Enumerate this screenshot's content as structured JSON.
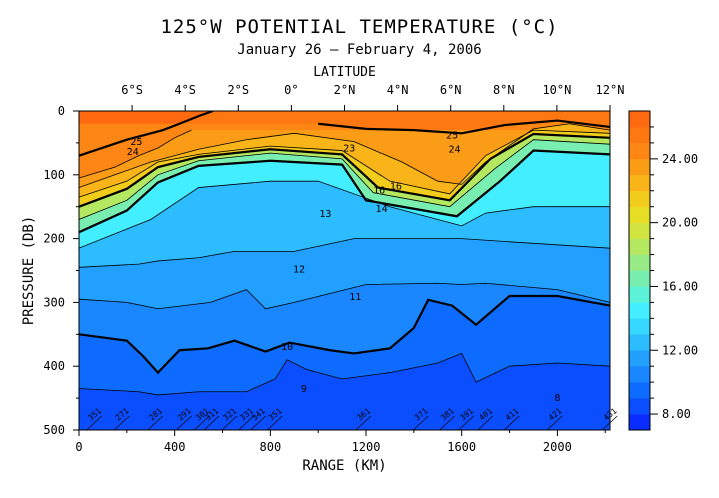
{
  "title": "125°W POTENTIAL TEMPERATURE (°C)",
  "subtitle": "January 26 – February 4, 2006",
  "chart_data": {
    "type": "heatmap",
    "title": "125°W POTENTIAL TEMPERATURE (°C)",
    "subtitle": "January 26 – February 4, 2006",
    "xlabel": "RANGE (KM)",
    "ylabel": "PRESSURE (DB)",
    "top_axis_label": "LATITUDE",
    "xlim": [
      0,
      2220
    ],
    "ylim": [
      500,
      0
    ],
    "x_ticks": [
      "0",
      "400",
      "800",
      "1200",
      "1600",
      "2000"
    ],
    "x_tick_values": [
      0,
      400,
      800,
      1200,
      1600,
      2000
    ],
    "y_ticks": [
      "0",
      "100",
      "200",
      "300",
      "400",
      "500"
    ],
    "y_tick_values": [
      0,
      100,
      200,
      300,
      400,
      500
    ],
    "lat_ticks": [
      "6°S",
      "4°S",
      "2°S",
      "0°",
      "2°N",
      "4°N",
      "6°N",
      "8°N",
      "10°N",
      "12°N"
    ],
    "lat_tick_range_km": [
      222,
      444,
      666,
      888,
      1110,
      1332,
      1554,
      1776,
      1998,
      2220
    ],
    "colorbar": {
      "ticks": [
        "8.00",
        "12.00",
        "16.00",
        "20.00",
        "24.00"
      ],
      "tick_values": [
        8,
        12,
        16,
        20,
        24
      ],
      "min": 7,
      "max": 27,
      "colors": [
        "#0a2cff",
        "#0a4eff",
        "#0d6cff",
        "#1a86ff",
        "#22a0ff",
        "#2cbcff",
        "#36d8ff",
        "#42eeff",
        "#5cf2d8",
        "#78efb0",
        "#96eb86",
        "#b4e860",
        "#d2e440",
        "#e6de24",
        "#f2cc1a",
        "#f8b418",
        "#fb9c16",
        "#fd8614",
        "#fe7812",
        "#ff6a10"
      ]
    },
    "contour_labels": [
      {
        "text": "25",
        "x": 240,
        "p": 47
      },
      {
        "text": "24",
        "x": 225,
        "p": 63
      },
      {
        "text": "23",
        "x": 1130,
        "p": 57
      },
      {
        "text": "25",
        "x": 1560,
        "p": 37
      },
      {
        "text": "24",
        "x": 1570,
        "p": 59
      },
      {
        "text": "16",
        "x": 1255,
        "p": 123
      },
      {
        "text": "16",
        "x": 1325,
        "p": 117
      },
      {
        "text": "14",
        "x": 1265,
        "p": 152
      },
      {
        "text": "13",
        "x": 1030,
        "p": 160
      },
      {
        "text": "12",
        "x": 920,
        "p": 247
      },
      {
        "text": "11",
        "x": 1155,
        "p": 290
      },
      {
        "text": "10",
        "x": 870,
        "p": 368
      },
      {
        "text": "9",
        "x": 940,
        "p": 434
      },
      {
        "text": "8",
        "x": 2000,
        "p": 448
      }
    ],
    "stations": [
      "351",
      "271",
      "281",
      "291",
      "301",
      "311",
      "321",
      "331",
      "341",
      "351",
      "361",
      "371",
      "381",
      "391",
      "401",
      "411",
      "421",
      "431"
    ],
    "stations_range_km": [
      45,
      160,
      300,
      420,
      495,
      535,
      610,
      680,
      730,
      800,
      1170,
      1410,
      1520,
      1600,
      1680,
      1790,
      1970,
      2200
    ],
    "isotherms": [
      {
        "t": 25,
        "points": [
          [
            0,
            70
          ],
          [
            200,
            45
          ],
          [
            350,
            30
          ],
          [
            420,
            20
          ],
          [
            500,
            8
          ],
          [
            560,
            0
          ]
        ]
      },
      {
        "t": 24,
        "points": [
          [
            0,
            105
          ],
          [
            150,
            88
          ],
          [
            250,
            70
          ],
          [
            330,
            58
          ],
          [
            400,
            42
          ],
          [
            470,
            30
          ]
        ]
      },
      {
        "t": 25,
        "points": [
          [
            1000,
            20
          ],
          [
            1200,
            28
          ],
          [
            1400,
            30
          ],
          [
            1600,
            35
          ],
          [
            1780,
            22
          ],
          [
            2000,
            15
          ],
          [
            2220,
            25
          ]
        ]
      },
      {
        "t": 23,
        "points": [
          [
            0,
            120
          ],
          [
            150,
            100
          ],
          [
            300,
            80
          ],
          [
            500,
            60
          ],
          [
            700,
            45
          ],
          [
            900,
            35
          ],
          [
            1150,
            48
          ],
          [
            1350,
            80
          ],
          [
            1500,
            110
          ],
          [
            1600,
            115
          ],
          [
            1700,
            80
          ],
          [
            1900,
            28
          ],
          [
            2050,
            20
          ],
          [
            2220,
            30
          ]
        ]
      },
      {
        "t": 22,
        "points": [
          [
            0,
            135
          ],
          [
            200,
            110
          ],
          [
            330,
            80
          ],
          [
            500,
            68
          ],
          [
            800,
            55
          ],
          [
            1100,
            62
          ],
          [
            1300,
            110
          ],
          [
            1550,
            130
          ],
          [
            1700,
            70
          ],
          [
            1900,
            30
          ],
          [
            2220,
            35
          ]
        ]
      },
      {
        "t": 20,
        "points": [
          [
            0,
            150
          ],
          [
            200,
            122
          ],
          [
            330,
            88
          ],
          [
            500,
            72
          ],
          [
            800,
            60
          ],
          [
            1100,
            68
          ],
          [
            1250,
            120
          ],
          [
            1550,
            140
          ],
          [
            1720,
            75
          ],
          [
            1900,
            36
          ],
          [
            2220,
            42
          ]
        ]
      },
      {
        "t": 17,
        "points": [
          [
            0,
            170
          ],
          [
            200,
            140
          ],
          [
            330,
            100
          ],
          [
            500,
            78
          ],
          [
            800,
            66
          ],
          [
            1100,
            75
          ],
          [
            1230,
            128
          ],
          [
            1550,
            150
          ],
          [
            1740,
            90
          ],
          [
            1900,
            45
          ],
          [
            2220,
            52
          ]
        ]
      },
      {
        "t": 15,
        "points": [
          [
            0,
            190
          ],
          [
            200,
            156
          ],
          [
            330,
            112
          ],
          [
            500,
            86
          ],
          [
            800,
            78
          ],
          [
            1100,
            84
          ],
          [
            1200,
            140
          ],
          [
            1580,
            165
          ],
          [
            1760,
            110
          ],
          [
            1900,
            62
          ],
          [
            2220,
            68
          ]
        ]
      },
      {
        "t": 13,
        "points": [
          [
            0,
            215
          ],
          [
            300,
            170
          ],
          [
            500,
            120
          ],
          [
            800,
            110
          ],
          [
            1000,
            110
          ],
          [
            1300,
            150
          ],
          [
            1500,
            170
          ],
          [
            1600,
            180
          ],
          [
            1700,
            160
          ],
          [
            1900,
            150
          ],
          [
            2220,
            150
          ]
        ]
      },
      {
        "t": 12,
        "points": [
          [
            0,
            245
          ],
          [
            250,
            240
          ],
          [
            330,
            235
          ],
          [
            500,
            230
          ],
          [
            650,
            220
          ],
          [
            900,
            220
          ],
          [
            1150,
            200
          ],
          [
            1400,
            200
          ],
          [
            1600,
            200
          ],
          [
            1800,
            205
          ],
          [
            2220,
            215
          ]
        ]
      },
      {
        "t": 11,
        "points": [
          [
            0,
            295
          ],
          [
            200,
            300
          ],
          [
            330,
            310
          ],
          [
            550,
            300
          ],
          [
            700,
            280
          ],
          [
            780,
            310
          ],
          [
            900,
            300
          ],
          [
            1200,
            272
          ],
          [
            1500,
            270
          ],
          [
            1600,
            272
          ],
          [
            1700,
            270
          ],
          [
            2000,
            280
          ],
          [
            2220,
            300
          ]
        ]
      },
      {
        "t": 10,
        "points": [
          [
            0,
            350
          ],
          [
            200,
            360
          ],
          [
            270,
            385
          ],
          [
            330,
            410
          ],
          [
            420,
            375
          ],
          [
            540,
            372
          ],
          [
            650,
            360
          ],
          [
            780,
            377
          ],
          [
            880,
            363
          ],
          [
            1050,
            375
          ],
          [
            1150,
            380
          ],
          [
            1300,
            372
          ],
          [
            1400,
            340
          ],
          [
            1460,
            296
          ],
          [
            1560,
            305
          ],
          [
            1660,
            335
          ],
          [
            1800,
            290
          ],
          [
            2000,
            290
          ],
          [
            2220,
            305
          ]
        ]
      },
      {
        "t": 9,
        "points": [
          [
            0,
            435
          ],
          [
            250,
            440
          ],
          [
            330,
            445
          ],
          [
            500,
            440
          ],
          [
            700,
            440
          ],
          [
            820,
            420
          ],
          [
            870,
            390
          ],
          [
            950,
            405
          ],
          [
            1100,
            420
          ],
          [
            1300,
            410
          ],
          [
            1500,
            395
          ],
          [
            1600,
            380
          ],
          [
            1660,
            425
          ],
          [
            1800,
            400
          ],
          [
            2000,
            395
          ],
          [
            2220,
            400
          ]
        ]
      }
    ]
  }
}
